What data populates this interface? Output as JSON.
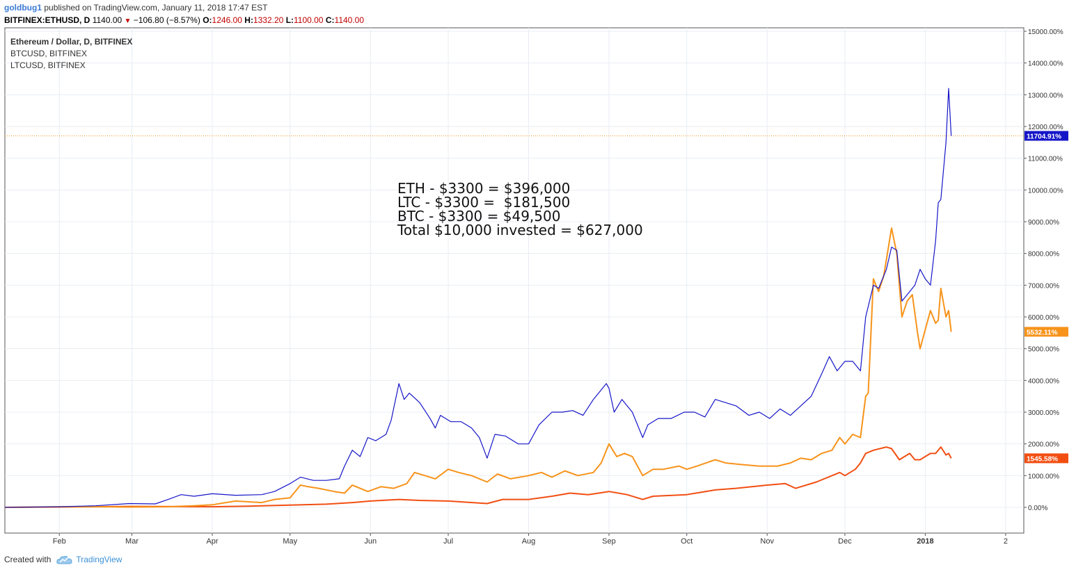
{
  "header": {
    "user": "goldbug1",
    "published": "published on TradingView.com, January 11, 2018 17:47 EST",
    "symbol": "BITFINEX:ETHUSD, D",
    "last": "1140.00",
    "change": "−106.80 (−8.57%)",
    "open_label": "O:",
    "open": "1246.00",
    "high_label": "H:",
    "high": "1332.20",
    "low_label": "L:",
    "low": "1100.00",
    "close_label": "C:",
    "close": "1140.00"
  },
  "legend": {
    "main": "Ethereum / Dollar, D, BITFINEX",
    "btc": "BTCUSD, BITFINEX",
    "ltc": "LTCUSD, BITFINEX"
  },
  "annotation": [
    "ETH - $3300 = $396,000",
    "LTC - $3300 =  $181,500",
    "BTC - $3300 = $49,500",
    "Total $10,000 invested = $627,000"
  ],
  "footer": {
    "created": "Created with",
    "brand": "TradingView"
  },
  "colors": {
    "eth": "#1515c8",
    "ltc": "#f7931a",
    "btc": "#f24e12",
    "grid": "#e8edf3",
    "axis": "#555555",
    "hline": "#f7931a"
  },
  "chart_data": {
    "type": "line",
    "y_unit": "%",
    "ylim": [
      -500,
      15000
    ],
    "y_ticks": [
      0,
      1000,
      2000,
      3000,
      4000,
      5000,
      6000,
      7000,
      8000,
      9000,
      10000,
      11000,
      12000,
      13000,
      14000,
      15000
    ],
    "y_tick_labels": [
      "0.00%",
      "1000.00%",
      "2000.00%",
      "3000.00%",
      "4000.00%",
      "5000.00%",
      "6000.00%",
      "7000.00%",
      "8000.00%",
      "9000.00%",
      "10000.00%",
      "11000.00%",
      "12000.00%",
      "13000.00%",
      "14000.00%",
      "15000.00%"
    ],
    "x_range": [
      "2017-01-11",
      "2018-02-08"
    ],
    "x_ticks": [
      {
        "date": "2017-02-01",
        "label": "Feb"
      },
      {
        "date": "2017-03-01",
        "label": "Mar"
      },
      {
        "date": "2017-04-01",
        "label": "Apr"
      },
      {
        "date": "2017-05-01",
        "label": "May"
      },
      {
        "date": "2017-06-01",
        "label": "Jun"
      },
      {
        "date": "2017-07-01",
        "label": "Jul"
      },
      {
        "date": "2017-08-01",
        "label": "Aug"
      },
      {
        "date": "2017-09-01",
        "label": "Sep"
      },
      {
        "date": "2017-10-01",
        "label": "Oct"
      },
      {
        "date": "2017-11-01",
        "label": "Nov"
      },
      {
        "date": "2017-12-01",
        "label": "Dec"
      },
      {
        "date": "2018-01-01",
        "label": "2018"
      },
      {
        "date": "2018-02-01",
        "label": "2"
      }
    ],
    "last_values": [
      {
        "series": "eth",
        "label": "11704.91%"
      },
      {
        "series": "ltc",
        "label": "5532.11%"
      },
      {
        "series": "btc",
        "label": "1545.58%"
      }
    ],
    "hline": 11704.91,
    "series": [
      {
        "name": "Ethereum / Dollar, D, BITFINEX",
        "key": "eth",
        "points": [
          [
            "2017-01-11",
            0
          ],
          [
            "2017-02-01",
            20
          ],
          [
            "2017-02-15",
            50
          ],
          [
            "2017-02-28",
            120
          ],
          [
            "2017-03-10",
            110
          ],
          [
            "2017-03-15",
            250
          ],
          [
            "2017-03-20",
            400
          ],
          [
            "2017-03-25",
            350
          ],
          [
            "2017-04-01",
            430
          ],
          [
            "2017-04-10",
            380
          ],
          [
            "2017-04-20",
            400
          ],
          [
            "2017-04-25",
            500
          ],
          [
            "2017-05-01",
            750
          ],
          [
            "2017-05-05",
            950
          ],
          [
            "2017-05-10",
            850
          ],
          [
            "2017-05-15",
            850
          ],
          [
            "2017-05-20",
            900
          ],
          [
            "2017-05-22",
            1300
          ],
          [
            "2017-05-25",
            1800
          ],
          [
            "2017-05-28",
            1600
          ],
          [
            "2017-05-31",
            2200
          ],
          [
            "2017-06-03",
            2100
          ],
          [
            "2017-06-07",
            2300
          ],
          [
            "2017-06-09",
            2750
          ],
          [
            "2017-06-12",
            3900
          ],
          [
            "2017-06-14",
            3400
          ],
          [
            "2017-06-16",
            3600
          ],
          [
            "2017-06-20",
            3300
          ],
          [
            "2017-06-24",
            2800
          ],
          [
            "2017-06-26",
            2500
          ],
          [
            "2017-06-28",
            2900
          ],
          [
            "2017-07-02",
            2700
          ],
          [
            "2017-07-06",
            2700
          ],
          [
            "2017-07-10",
            2500
          ],
          [
            "2017-07-13",
            2200
          ],
          [
            "2017-07-16",
            1550
          ],
          [
            "2017-07-19",
            2300
          ],
          [
            "2017-07-23",
            2250
          ],
          [
            "2017-07-28",
            2000
          ],
          [
            "2017-08-01",
            2000
          ],
          [
            "2017-08-05",
            2600
          ],
          [
            "2017-08-10",
            3000
          ],
          [
            "2017-08-14",
            3000
          ],
          [
            "2017-08-18",
            3050
          ],
          [
            "2017-08-22",
            2900
          ],
          [
            "2017-08-26",
            3400
          ],
          [
            "2017-08-31",
            3900
          ],
          [
            "2017-09-01",
            3750
          ],
          [
            "2017-09-03",
            3000
          ],
          [
            "2017-09-06",
            3400
          ],
          [
            "2017-09-10",
            3000
          ],
          [
            "2017-09-14",
            2200
          ],
          [
            "2017-09-16",
            2600
          ],
          [
            "2017-09-20",
            2800
          ],
          [
            "2017-09-25",
            2800
          ],
          [
            "2017-09-30",
            3000
          ],
          [
            "2017-10-04",
            3000
          ],
          [
            "2017-10-08",
            2850
          ],
          [
            "2017-10-12",
            3400
          ],
          [
            "2017-10-16",
            3300
          ],
          [
            "2017-10-20",
            3200
          ],
          [
            "2017-10-25",
            2900
          ],
          [
            "2017-10-29",
            3000
          ],
          [
            "2017-11-02",
            2800
          ],
          [
            "2017-11-06",
            3100
          ],
          [
            "2017-11-10",
            2900
          ],
          [
            "2017-11-14",
            3200
          ],
          [
            "2017-11-18",
            3500
          ],
          [
            "2017-11-22",
            4200
          ],
          [
            "2017-11-25",
            4750
          ],
          [
            "2017-11-28",
            4300
          ],
          [
            "2017-12-01",
            4600
          ],
          [
            "2017-12-04",
            4600
          ],
          [
            "2017-12-07",
            4300
          ],
          [
            "2017-12-09",
            6000
          ],
          [
            "2017-12-12",
            7000
          ],
          [
            "2017-12-14",
            6900
          ],
          [
            "2017-12-17",
            7500
          ],
          [
            "2017-12-19",
            8200
          ],
          [
            "2017-12-21",
            8100
          ],
          [
            "2017-12-23",
            6500
          ],
          [
            "2017-12-26",
            6800
          ],
          [
            "2017-12-28",
            7000
          ],
          [
            "2017-12-30",
            7500
          ],
          [
            "2018-01-01",
            7200
          ],
          [
            "2018-01-03",
            7000
          ],
          [
            "2018-01-05",
            8400
          ],
          [
            "2018-01-06",
            9600
          ],
          [
            "2018-01-07",
            9700
          ],
          [
            "2018-01-09",
            11500
          ],
          [
            "2018-01-10",
            13200
          ],
          [
            "2018-01-11",
            11705
          ]
        ]
      },
      {
        "name": "LTCUSD, BITFINEX",
        "key": "ltc",
        "points": [
          [
            "2017-01-11",
            0
          ],
          [
            "2017-02-01",
            20
          ],
          [
            "2017-02-15",
            20
          ],
          [
            "2017-02-28",
            10
          ],
          [
            "2017-03-15",
            20
          ],
          [
            "2017-03-25",
            50
          ],
          [
            "2017-04-01",
            80
          ],
          [
            "2017-04-10",
            200
          ],
          [
            "2017-04-20",
            150
          ],
          [
            "2017-04-25",
            250
          ],
          [
            "2017-05-01",
            300
          ],
          [
            "2017-05-05",
            700
          ],
          [
            "2017-05-08",
            650
          ],
          [
            "2017-05-12",
            600
          ],
          [
            "2017-05-18",
            500
          ],
          [
            "2017-05-22",
            450
          ],
          [
            "2017-05-25",
            700
          ],
          [
            "2017-05-31",
            500
          ],
          [
            "2017-06-05",
            650
          ],
          [
            "2017-06-10",
            600
          ],
          [
            "2017-06-15",
            750
          ],
          [
            "2017-06-18",
            1100
          ],
          [
            "2017-06-22",
            1000
          ],
          [
            "2017-06-26",
            900
          ],
          [
            "2017-07-01",
            1200
          ],
          [
            "2017-07-05",
            1100
          ],
          [
            "2017-07-10",
            1000
          ],
          [
            "2017-07-16",
            800
          ],
          [
            "2017-07-20",
            1050
          ],
          [
            "2017-07-25",
            900
          ],
          [
            "2017-08-01",
            1000
          ],
          [
            "2017-08-06",
            1100
          ],
          [
            "2017-08-10",
            950
          ],
          [
            "2017-08-15",
            1150
          ],
          [
            "2017-08-20",
            1000
          ],
          [
            "2017-08-26",
            1100
          ],
          [
            "2017-08-29",
            1400
          ],
          [
            "2017-09-01",
            2000
          ],
          [
            "2017-09-04",
            1600
          ],
          [
            "2017-09-07",
            1700
          ],
          [
            "2017-09-10",
            1600
          ],
          [
            "2017-09-14",
            1000
          ],
          [
            "2017-09-18",
            1200
          ],
          [
            "2017-09-22",
            1200
          ],
          [
            "2017-09-28",
            1300
          ],
          [
            "2017-10-01",
            1200
          ],
          [
            "2017-10-05",
            1300
          ],
          [
            "2017-10-12",
            1500
          ],
          [
            "2017-10-16",
            1400
          ],
          [
            "2017-10-22",
            1350
          ],
          [
            "2017-10-29",
            1300
          ],
          [
            "2017-11-05",
            1300
          ],
          [
            "2017-11-10",
            1400
          ],
          [
            "2017-11-14",
            1550
          ],
          [
            "2017-11-18",
            1500
          ],
          [
            "2017-11-22",
            1700
          ],
          [
            "2017-11-26",
            1800
          ],
          [
            "2017-11-29",
            2200
          ],
          [
            "2017-12-01",
            2000
          ],
          [
            "2017-12-04",
            2300
          ],
          [
            "2017-12-07",
            2200
          ],
          [
            "2017-12-09",
            3500
          ],
          [
            "2017-12-10",
            3600
          ],
          [
            "2017-12-12",
            7200
          ],
          [
            "2017-12-14",
            6800
          ],
          [
            "2017-12-16",
            7300
          ],
          [
            "2017-12-19",
            8800
          ],
          [
            "2017-12-21",
            8000
          ],
          [
            "2017-12-23",
            6000
          ],
          [
            "2017-12-25",
            6500
          ],
          [
            "2017-12-27",
            6700
          ],
          [
            "2017-12-29",
            5500
          ],
          [
            "2017-12-30",
            5000
          ],
          [
            "2018-01-01",
            5600
          ],
          [
            "2018-01-03",
            6200
          ],
          [
            "2018-01-05",
            5800
          ],
          [
            "2018-01-06",
            5900
          ],
          [
            "2018-01-07",
            6900
          ],
          [
            "2018-01-09",
            6000
          ],
          [
            "2018-01-10",
            6200
          ],
          [
            "2018-01-11",
            5532
          ]
        ]
      },
      {
        "name": "BTCUSD, BITFINEX",
        "key": "btc",
        "points": [
          [
            "2017-01-11",
            0
          ],
          [
            "2017-02-01",
            10
          ],
          [
            "2017-03-01",
            30
          ],
          [
            "2017-04-01",
            20
          ],
          [
            "2017-04-15",
            40
          ],
          [
            "2017-05-01",
            70
          ],
          [
            "2017-05-15",
            100
          ],
          [
            "2017-05-25",
            150
          ],
          [
            "2017-06-01",
            200
          ],
          [
            "2017-06-12",
            250
          ],
          [
            "2017-06-20",
            220
          ],
          [
            "2017-07-01",
            200
          ],
          [
            "2017-07-16",
            120
          ],
          [
            "2017-07-22",
            250
          ],
          [
            "2017-08-01",
            250
          ],
          [
            "2017-08-10",
            350
          ],
          [
            "2017-08-17",
            450
          ],
          [
            "2017-08-24",
            400
          ],
          [
            "2017-09-01",
            500
          ],
          [
            "2017-09-08",
            400
          ],
          [
            "2017-09-14",
            250
          ],
          [
            "2017-09-18",
            350
          ],
          [
            "2017-10-01",
            400
          ],
          [
            "2017-10-12",
            550
          ],
          [
            "2017-10-20",
            600
          ],
          [
            "2017-11-01",
            700
          ],
          [
            "2017-11-08",
            750
          ],
          [
            "2017-11-12",
            600
          ],
          [
            "2017-11-20",
            800
          ],
          [
            "2017-11-29",
            1100
          ],
          [
            "2017-12-01",
            1000
          ],
          [
            "2017-12-05",
            1200
          ],
          [
            "2017-12-07",
            1400
          ],
          [
            "2017-12-09",
            1700
          ],
          [
            "2017-12-12",
            1800
          ],
          [
            "2017-12-17",
            1900
          ],
          [
            "2017-12-19",
            1850
          ],
          [
            "2017-12-22",
            1500
          ],
          [
            "2017-12-24",
            1600
          ],
          [
            "2017-12-26",
            1700
          ],
          [
            "2017-12-28",
            1500
          ],
          [
            "2017-12-30",
            1500
          ],
          [
            "2018-01-01",
            1600
          ],
          [
            "2018-01-03",
            1700
          ],
          [
            "2018-01-05",
            1700
          ],
          [
            "2018-01-07",
            1900
          ],
          [
            "2018-01-09",
            1650
          ],
          [
            "2018-01-10",
            1700
          ],
          [
            "2018-01-11",
            1546
          ]
        ]
      }
    ]
  }
}
